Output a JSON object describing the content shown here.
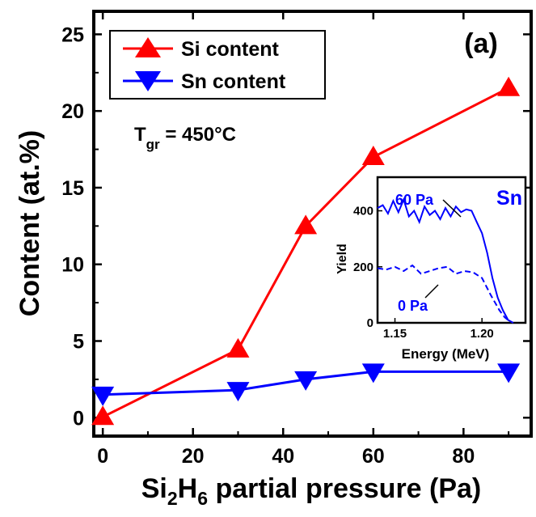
{
  "chart_data": [
    {
      "type": "line",
      "panel_label": "(a)",
      "xlabel": {
        "pre": "Si",
        "sub1": "2",
        "mid": "H",
        "sub2": "6",
        "post": " partial pressure (Pa)"
      },
      "ylabel": "Content (at.%)",
      "xlim": [
        -2,
        95
      ],
      "ylim": [
        -1.2,
        26.5
      ],
      "xticks": [
        0,
        20,
        40,
        60,
        80
      ],
      "yticks": [
        0,
        5,
        10,
        15,
        20,
        25
      ],
      "annotation": {
        "pre": "T",
        "sub": "gr",
        "post": " = 450°C"
      },
      "legend_position": "top-left",
      "series": [
        {
          "name": "Si content",
          "color": "#ff0000",
          "marker": "triangle-up",
          "x": [
            0,
            30,
            45,
            60,
            90
          ],
          "y": [
            0.05,
            4.45,
            12.5,
            17.0,
            21.5
          ]
        },
        {
          "name": "Sn content",
          "color": "#0000ff",
          "marker": "triangle-down",
          "x": [
            0,
            30,
            45,
            60,
            90
          ],
          "y": [
            1.5,
            1.8,
            2.5,
            3.0,
            3.0
          ]
        }
      ]
    },
    {
      "type": "line",
      "inset": true,
      "title": "Sn",
      "xlabel": "Energy (MeV)",
      "ylabel": "Yield",
      "xlim": [
        1.14,
        1.225
      ],
      "ylim": [
        0,
        520
      ],
      "xticks": [
        "1.15",
        "1.20"
      ],
      "yticks": [
        0,
        200,
        400
      ],
      "series": [
        {
          "name": "60 Pa",
          "color": "#0000ff",
          "style": "solid",
          "x": [
            1.14,
            1.143,
            1.146,
            1.149,
            1.152,
            1.155,
            1.158,
            1.161,
            1.164,
            1.167,
            1.17,
            1.173,
            1.176,
            1.179,
            1.182,
            1.185,
            1.188,
            1.191,
            1.194,
            1.197,
            1.2,
            1.203,
            1.206,
            1.209,
            1.212,
            1.215,
            1.218
          ],
          "y": [
            410,
            420,
            390,
            435,
            395,
            440,
            380,
            400,
            360,
            415,
            385,
            400,
            370,
            410,
            380,
            415,
            395,
            405,
            400,
            360,
            320,
            250,
            160,
            90,
            45,
            10,
            0
          ]
        },
        {
          "name": "0 Pa",
          "color": "#0000ff",
          "style": "dashed",
          "x": [
            1.14,
            1.145,
            1.15,
            1.155,
            1.16,
            1.165,
            1.17,
            1.175,
            1.18,
            1.185,
            1.19,
            1.195,
            1.2,
            1.205,
            1.21,
            1.213,
            1.216
          ],
          "y": [
            195,
            190,
            200,
            185,
            205,
            175,
            185,
            195,
            200,
            175,
            185,
            180,
            160,
            100,
            45,
            20,
            5
          ]
        }
      ]
    }
  ]
}
